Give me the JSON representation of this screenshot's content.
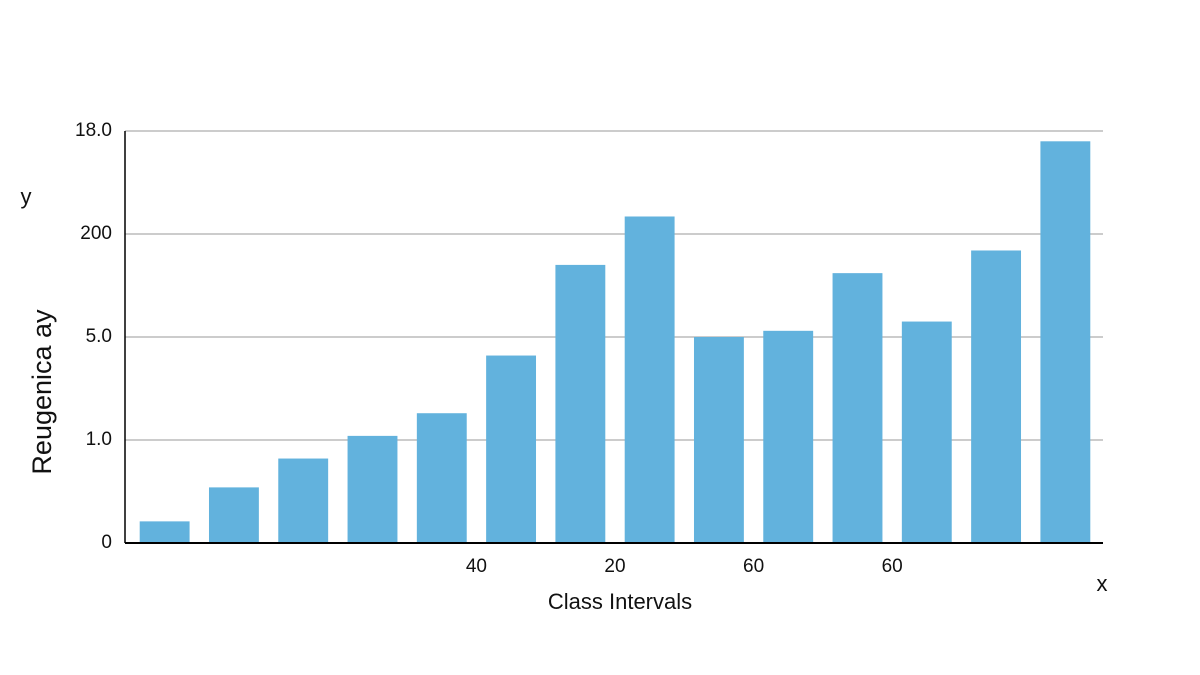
{
  "chart_data": {
    "type": "bar",
    "y_label": "Reugenica ay",
    "x_label": "Class Intervals",
    "y_axis_letter": "y",
    "x_axis_letter": "x",
    "categories": [
      null,
      null,
      null,
      null,
      null,
      "40",
      null,
      "20",
      null,
      "60",
      null,
      "60",
      null,
      null
    ],
    "values": [
      0.21,
      0.54,
      0.82,
      1.04,
      1.26,
      1.82,
      2.7,
      3.17,
      2.0,
      2.06,
      2.62,
      2.15,
      2.84,
      3.9
    ],
    "color": "#62b2dd",
    "ylim": [
      0,
      4
    ],
    "yticks": [
      0,
      {
        "value": 1,
        "label": "1.0"
      },
      {
        "value": 2,
        "label": "5.0"
      },
      {
        "value": 3,
        "label": "200"
      },
      {
        "value": 4,
        "label": "18.0"
      }
    ],
    "grid": true
  }
}
